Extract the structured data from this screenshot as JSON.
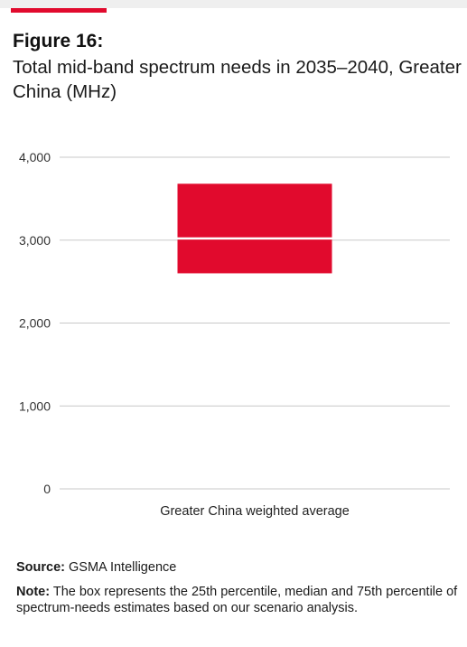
{
  "figure": {
    "number": "Figure 16:",
    "title": "Total mid-band spectrum needs in 2035–2040, Greater China (MHz)"
  },
  "chart_data": {
    "type": "box",
    "title": "Total mid-band spectrum needs in 2035–2040, Greater China (MHz)",
    "categories": [
      "Greater China weighted average"
    ],
    "boxes": [
      {
        "category": "Greater China weighted average",
        "q1": 2600,
        "median": 3020,
        "q3": 3680
      }
    ],
    "ylim": [
      0,
      4000
    ],
    "yticks": [
      0,
      1000,
      2000,
      3000,
      4000
    ],
    "ytick_labels": [
      "0",
      "1,000",
      "2,000",
      "3,000",
      "4,000"
    ],
    "grid": true,
    "colors": {
      "box": "#e10a2d",
      "median": "#ffffff",
      "grid": "#c8c8c8"
    }
  },
  "footer": {
    "source_label": "Source:",
    "source_text": "GSMA Intelligence",
    "note_label": "Note:",
    "note_text": "The box represents the 25th percentile, median and 75th percentile of spectrum-needs estimates based on our scenario analysis."
  }
}
